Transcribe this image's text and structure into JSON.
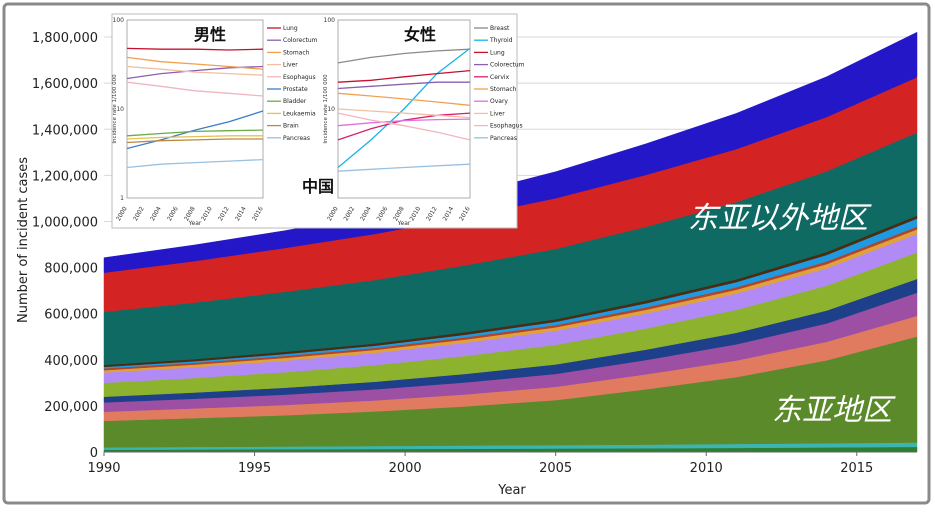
{
  "chart_data": [
    {
      "type": "area",
      "stacked": true,
      "xlabel": "Year",
      "ylabel": "Number of incident cases",
      "xlim": [
        1990,
        2017
      ],
      "ylim": [
        0,
        1900000
      ],
      "xticks": [
        "1990",
        "1995",
        "2000",
        "2005",
        "2010",
        "2015"
      ],
      "yticks": [
        "0",
        "200,000",
        "400,000",
        "600,000",
        "800,000",
        "1,000,000",
        "1,200,000",
        "1,400,000",
        "1,600,000",
        "1,800,000"
      ],
      "x": [
        1990,
        1993,
        1996,
        1999,
        2002,
        2005,
        2008,
        2011,
        2014,
        2017
      ],
      "annotations": {
        "outside_east_asia": "东亚以外地区",
        "east_asia": "东亚地区"
      },
      "series": [
        {
          "color": "#2d7d32",
          "values": [
            10000,
            11000,
            12000,
            13000,
            14000,
            15000,
            16000,
            18000,
            20000,
            22000
          ]
        },
        {
          "color": "#3cb4b0",
          "values": [
            10000,
            11000,
            12000,
            13000,
            14000,
            15000,
            16000,
            17000,
            18000,
            19000
          ]
        },
        {
          "color": "#5b8a2a",
          "values": [
            115000,
            125000,
            135000,
            150000,
            170000,
            195000,
            240000,
            290000,
            360000,
            460000
          ]
        },
        {
          "color": "#e07b5f",
          "values": [
            40000,
            42000,
            45000,
            48000,
            52000,
            58000,
            65000,
            72000,
            80000,
            90000
          ]
        },
        {
          "color": "#9c4fa3",
          "values": [
            40000,
            42000,
            45000,
            48000,
            52000,
            56000,
            62000,
            70000,
            80000,
            100000
          ]
        },
        {
          "color": "#1e3f8a",
          "values": [
            25000,
            27000,
            30000,
            33000,
            37000,
            41000,
            45000,
            50000,
            56000,
            60000
          ]
        },
        {
          "color": "#8db32e",
          "values": [
            60000,
            63000,
            67000,
            72000,
            78000,
            85000,
            92000,
            100000,
            108000,
            115000
          ]
        },
        {
          "color": "#b28af5",
          "values": [
            45000,
            47000,
            50000,
            53000,
            57000,
            61000,
            65000,
            70000,
            75000,
            80000
          ]
        },
        {
          "color": "#e0a13a",
          "values": [
            10000,
            11000,
            12000,
            13000,
            14000,
            15000,
            16000,
            17000,
            18000,
            20000
          ]
        },
        {
          "color": "#b0452f",
          "values": [
            8000,
            8000,
            9000,
            9000,
            10000,
            10000,
            11000,
            11000,
            12000,
            12000
          ]
        },
        {
          "color": "#1f9ae0",
          "values": [
            6000,
            7000,
            8000,
            9000,
            11000,
            14000,
            17000,
            22000,
            28000,
            35000
          ]
        },
        {
          "color": "#4a2d10",
          "values": [
            9000,
            9000,
            10000,
            10000,
            11000,
            11000,
            12000,
            12000,
            13000,
            13000
          ]
        },
        {
          "color": "#0f6a63",
          "values": [
            230000,
            245000,
            260000,
            275000,
            290000,
            305000,
            320000,
            335000,
            350000,
            360000
          ]
        },
        {
          "color": "#d42323",
          "values": [
            170000,
            180000,
            190000,
            200000,
            210000,
            220000,
            225000,
            230000,
            235000,
            240000
          ]
        },
        {
          "color": "#2317c8",
          "values": [
            65000,
            70000,
            75000,
            85000,
            95000,
            115000,
            135000,
            155000,
            175000,
            195000
          ]
        }
      ]
    },
    {
      "type": "line",
      "title": "男性",
      "region_label": "中国",
      "xlabel": "Year",
      "ylabel": "Incidence rate 1/100 000",
      "yscale": "log",
      "ylim": [
        1,
        100
      ],
      "yticks": [
        "100",
        "10",
        "1"
      ],
      "xticks": [
        "2000",
        "2002",
        "2004",
        "2006",
        "2008",
        "2010",
        "2012",
        "2014",
        "2016"
      ],
      "x": [
        2000,
        2004,
        2008,
        2012,
        2016
      ],
      "series": [
        {
          "name": "Lung",
          "color": "#c8102e",
          "values": [
            48,
            47,
            47,
            46,
            47
          ]
        },
        {
          "name": "Colorectum",
          "color": "#8a5fb0",
          "values": [
            22,
            25,
            27,
            29,
            30
          ]
        },
        {
          "name": "Stomach",
          "color": "#f0a050",
          "values": [
            38,
            34,
            32,
            30,
            28
          ]
        },
        {
          "name": "Liver",
          "color": "#f0c0a0",
          "values": [
            30,
            28,
            26,
            25,
            24
          ]
        },
        {
          "name": "Esophagus",
          "color": "#f0b6c0",
          "values": [
            20,
            18,
            16,
            15,
            14
          ]
        },
        {
          "name": "Prostate",
          "color": "#3a7dc9",
          "values": [
            3.6,
            4.5,
            5.8,
            7.2,
            9.5
          ]
        },
        {
          "name": "Bladder",
          "color": "#6aab47",
          "values": [
            5.0,
            5.3,
            5.6,
            5.7,
            5.8
          ]
        },
        {
          "name": "Leukaemia",
          "color": "#e8c050",
          "values": [
            4.6,
            4.8,
            4.9,
            5.0,
            5.0
          ]
        },
        {
          "name": "Brain",
          "color": "#b88a40",
          "values": [
            4.2,
            4.4,
            4.5,
            4.6,
            4.6
          ]
        },
        {
          "name": "Pancreas",
          "color": "#9ac0e0",
          "values": [
            2.2,
            2.4,
            2.5,
            2.6,
            2.7
          ]
        }
      ]
    },
    {
      "type": "line",
      "title": "女性",
      "xlabel": "Year",
      "ylabel": "Incidence rate 1/100 000",
      "yscale": "log",
      "ylim": [
        1,
        100
      ],
      "yticks": [
        "100",
        "10"
      ],
      "xticks": [
        "2000",
        "2002",
        "2004",
        "2006",
        "2008",
        "2010",
        "2012",
        "2014",
        "2016"
      ],
      "x": [
        2000,
        2004,
        2008,
        2012,
        2016
      ],
      "series": [
        {
          "name": "Breast",
          "color": "#8a8a8a",
          "values": [
            33,
            38,
            42,
            45,
            47
          ]
        },
        {
          "name": "Thyroid",
          "color": "#18b4e8",
          "values": [
            2.2,
            4.5,
            10,
            25,
            48
          ]
        },
        {
          "name": "Lung",
          "color": "#c8102e",
          "values": [
            20,
            21,
            23,
            25,
            27
          ]
        },
        {
          "name": "Colorectum",
          "color": "#8a5fb0",
          "values": [
            17,
            18,
            19,
            20,
            20
          ]
        },
        {
          "name": "Cervix",
          "color": "#d82070",
          "values": [
            4.5,
            6,
            7.5,
            8.5,
            9
          ]
        },
        {
          "name": "Stomach",
          "color": "#f0a050",
          "values": [
            15,
            14,
            13,
            12,
            11
          ]
        },
        {
          "name": "Ovary",
          "color": "#e070e0",
          "values": [
            6.5,
            7,
            7.4,
            7.6,
            7.7
          ]
        },
        {
          "name": "Liver",
          "color": "#f0c0a0",
          "values": [
            10,
            9.5,
            9,
            8.5,
            8
          ]
        },
        {
          "name": "Esophagus",
          "color": "#f0b6c0",
          "values": [
            9,
            7.5,
            6.5,
            5.5,
            4.5
          ]
        },
        {
          "name": "Pancreas",
          "color": "#9ac0e0",
          "values": [
            2.0,
            2.1,
            2.2,
            2.3,
            2.4
          ]
        }
      ]
    }
  ]
}
